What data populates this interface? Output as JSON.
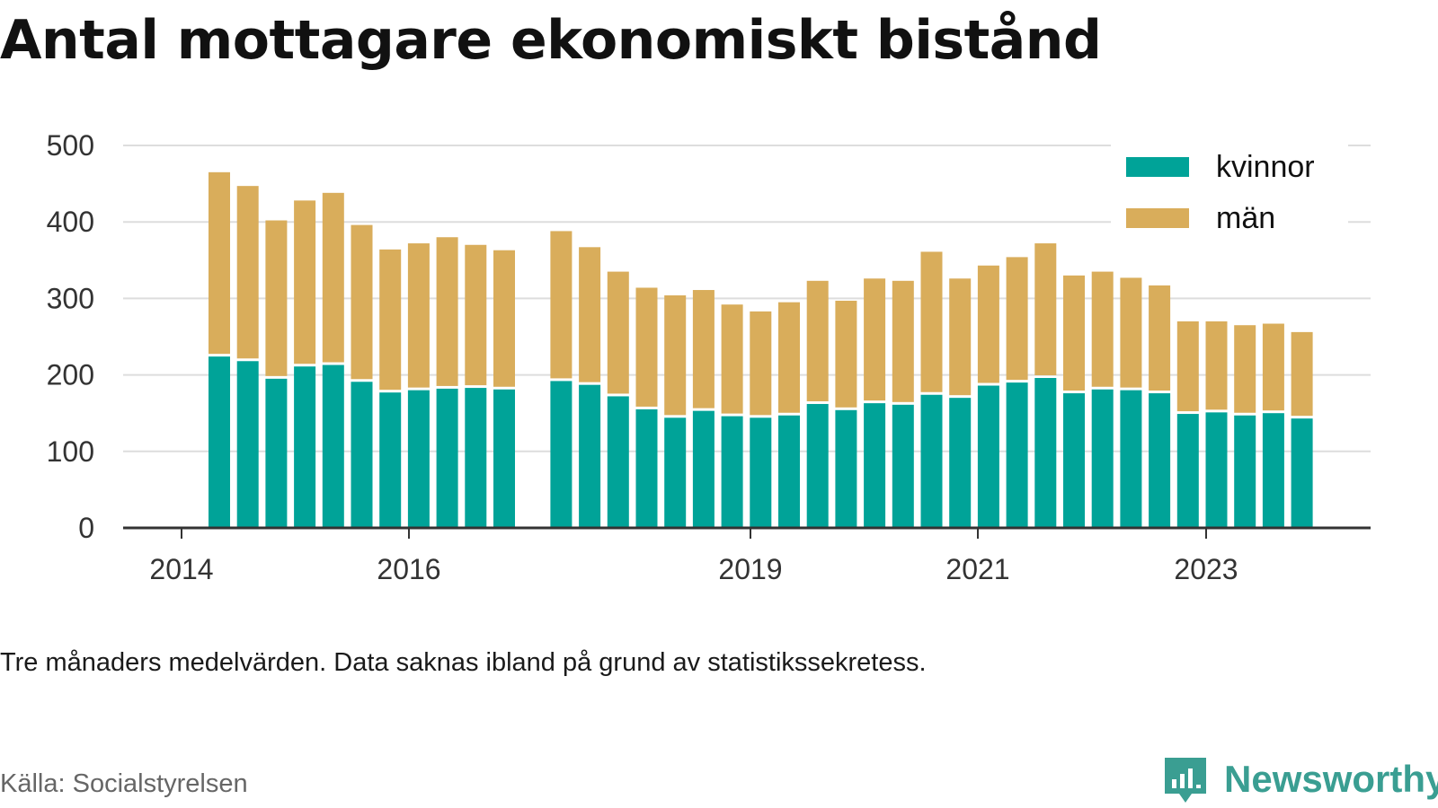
{
  "title": "Antal mottagare ekonomiskt bistånd",
  "note": "Tre månaders medelvärden. Data saknas ibland på grund av statistikssekretess.",
  "source": "Källa: Socialstyrelsen",
  "brand": {
    "name": "Newsworthy",
    "icon": "bar-chart-speech-bubble-icon",
    "color": "#3a9e92"
  },
  "chart_data": {
    "type": "bar",
    "stacked": true,
    "title": "Antal mottagare ekonomiskt bistånd",
    "xlabel": "",
    "ylabel": "",
    "ylim": [
      0,
      500
    ],
    "yticks": [
      0,
      100,
      200,
      300,
      400,
      500
    ],
    "xticks": [
      "2014",
      "2016",
      "2019",
      "2021",
      "2023"
    ],
    "grid": true,
    "legend_position": "top-right",
    "categories": [
      "2014-Q2",
      "2014-Q3",
      "2014-Q4",
      "2015-Q1",
      "2015-Q2",
      "2015-Q3",
      "2015-Q4",
      "2016-Q1",
      "2016-Q2",
      "2016-Q3",
      "2016-Q4",
      "2017-Q1",
      "2017-Q2",
      "2017-Q3",
      "2017-Q4",
      "2018-Q1",
      "2018-Q2",
      "2018-Q3",
      "2018-Q4",
      "2019-Q1",
      "2019-Q2",
      "2019-Q3",
      "2019-Q4",
      "2020-Q1",
      "2020-Q2",
      "2020-Q3",
      "2020-Q4",
      "2021-Q1",
      "2021-Q2",
      "2021-Q3",
      "2021-Q4",
      "2022-Q1",
      "2022-Q2",
      "2022-Q3",
      "2022-Q4",
      "2023-Q1",
      "2023-Q2",
      "2023-Q3",
      "2023-Q4"
    ],
    "series": [
      {
        "name": "kvinnor",
        "color": "#00a398",
        "values": [
          224,
          218,
          195,
          211,
          213,
          191,
          177,
          180,
          182,
          183,
          181,
          null,
          192,
          187,
          172,
          155,
          144,
          153,
          146,
          144,
          147,
          162,
          154,
          163,
          161,
          174,
          170,
          186,
          190,
          196,
          176,
          181,
          180,
          176,
          149,
          151,
          147,
          150,
          143
        ]
      },
      {
        "name": "män",
        "color": "#d9ad5b",
        "values": [
          241,
          229,
          207,
          217,
          225,
          205,
          187,
          192,
          198,
          187,
          182,
          null,
          196,
          180,
          163,
          159,
          160,
          158,
          146,
          139,
          148,
          161,
          143,
          163,
          162,
          187,
          156,
          157,
          164,
          176,
          154,
          154,
          147,
          141,
          121,
          119,
          118,
          117,
          113
        ]
      }
    ]
  }
}
